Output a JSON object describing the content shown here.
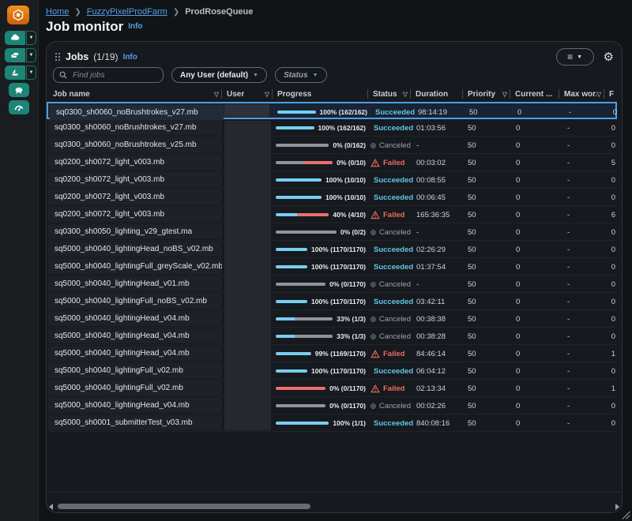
{
  "colors": {
    "accent_blue": "#539fe5",
    "cyan": "#74cff2",
    "red": "#eb6f6f",
    "gray": "#8d96a0",
    "succeeded_text": "#5fc8e8",
    "failed_text": "#ec6d62",
    "canceled_text": "#98a3ad",
    "sidebar_teal": "#1b8577",
    "logo_orange": "#ec7211"
  },
  "breadcrumb": {
    "items": [
      {
        "label": "Home",
        "link": true
      },
      {
        "label": "FuzzyPixelProdFarm",
        "link": true
      },
      {
        "label": "ProdRoseQueue",
        "link": false
      }
    ]
  },
  "page": {
    "title": "Job monitor",
    "info": "Info"
  },
  "sidebar": {
    "items": [
      {
        "icon": "farm-icon",
        "split": true
      },
      {
        "icon": "fleet-icon",
        "split": true
      },
      {
        "icon": "queue-icon",
        "split": true
      },
      {
        "icon": "budget-icon",
        "split": false
      },
      {
        "icon": "usage-icon",
        "split": false
      }
    ]
  },
  "panel": {
    "title": "Jobs",
    "count": "(1/19)",
    "info": "Info"
  },
  "toolbar": {
    "search_placeholder": "Find jobs",
    "user_filter": "Any User (default)",
    "status_filter": "Status"
  },
  "table": {
    "columns": [
      {
        "label": "Job name",
        "filter": true
      },
      {
        "label": "User",
        "filter": true
      },
      {
        "label": "Progress",
        "filter": false
      },
      {
        "label": "Status",
        "filter": true
      },
      {
        "label": "Duration",
        "filter": false
      },
      {
        "label": "Priority",
        "filter": true
      },
      {
        "label": "Current ...",
        "filter": false
      },
      {
        "label": "Max wor...",
        "filter": true
      },
      {
        "label": "F",
        "filter": false
      }
    ],
    "rows": [
      {
        "name": "sq0300_sh0060_noBrushtrokes_v27.mb",
        "progress": "100% (162/162)",
        "bar": [
          [
            "cyan",
            100
          ]
        ],
        "status": "Succeeded",
        "duration": "98:14:19",
        "priority": "50",
        "current": "0",
        "max_workers": "-",
        "failed": "0",
        "selected": true
      },
      {
        "name": "sq0300_sh0060_noBrushtrokes_v27.mb",
        "progress": "100% (162/162)",
        "bar": [
          [
            "cyan",
            100
          ]
        ],
        "status": "Succeeded",
        "duration": "01:03:56",
        "priority": "50",
        "current": "0",
        "max_workers": "-",
        "failed": "0",
        "selected": false
      },
      {
        "name": "sq0300_sh0060_noBrushtrokes_v25.mb",
        "progress": "0% (0/162)",
        "bar": [
          [
            "gray",
            100
          ]
        ],
        "status": "Canceled",
        "duration": "-",
        "priority": "50",
        "current": "0",
        "max_workers": "-",
        "failed": "0",
        "selected": false
      },
      {
        "name": "sq0200_sh0072_light_v003.mb",
        "progress": "0% (0/10)",
        "bar": [
          [
            "gray",
            50
          ],
          [
            "red",
            50
          ]
        ],
        "status": "Failed",
        "duration": "00:03:02",
        "priority": "50",
        "current": "0",
        "max_workers": "-",
        "failed": "5",
        "selected": false
      },
      {
        "name": "sq0200_sh0072_light_v003.mb",
        "progress": "100% (10/10)",
        "bar": [
          [
            "cyan",
            100
          ]
        ],
        "status": "Succeeded",
        "duration": "00:08:55",
        "priority": "50",
        "current": "0",
        "max_workers": "-",
        "failed": "0",
        "selected": false
      },
      {
        "name": "sq0200_sh0072_light_v003.mb",
        "progress": "100% (10/10)",
        "bar": [
          [
            "cyan",
            100
          ]
        ],
        "status": "Succeeded",
        "duration": "00:06:45",
        "priority": "50",
        "current": "0",
        "max_workers": "-",
        "failed": "0",
        "selected": false
      },
      {
        "name": "sq0200_sh0072_light_v003.mb",
        "progress": "40% (4/10)",
        "bar": [
          [
            "cyan",
            40
          ],
          [
            "red",
            60
          ]
        ],
        "status": "Failed",
        "duration": "165:36:35",
        "priority": "50",
        "current": "0",
        "max_workers": "-",
        "failed": "6",
        "selected": false
      },
      {
        "name": "sq0300_sh0050_lighting_v29_gtest.ma",
        "progress": "0% (0/2)",
        "bar": [
          [
            "gray",
            100
          ]
        ],
        "status": "Canceled",
        "duration": "-",
        "priority": "50",
        "current": "0",
        "max_workers": "-",
        "failed": "0",
        "selected": false
      },
      {
        "name": "sq5000_sh0040_lightingHead_noBS_v02.mb",
        "progress": "100% (1170/1170)",
        "bar": [
          [
            "cyan",
            100
          ]
        ],
        "status": "Succeeded",
        "duration": "02:26:29",
        "priority": "50",
        "current": "0",
        "max_workers": "-",
        "failed": "0",
        "selected": false
      },
      {
        "name": "sq5000_sh0040_lightingFull_greyScale_v02.mb",
        "progress": "100% (1170/1170)",
        "bar": [
          [
            "cyan",
            100
          ]
        ],
        "status": "Succeeded",
        "duration": "01:37:54",
        "priority": "50",
        "current": "0",
        "max_workers": "-",
        "failed": "0",
        "selected": false
      },
      {
        "name": "sq5000_sh0040_lightingHead_v01.mb",
        "progress": "0% (0/1170)",
        "bar": [
          [
            "gray",
            100
          ]
        ],
        "status": "Canceled",
        "duration": "-",
        "priority": "50",
        "current": "0",
        "max_workers": "-",
        "failed": "0",
        "selected": false
      },
      {
        "name": "sq5000_sh0040_lightingFull_noBS_v02.mb",
        "progress": "100% (1170/1170)",
        "bar": [
          [
            "cyan",
            100
          ]
        ],
        "status": "Succeeded",
        "duration": "03:42:11",
        "priority": "50",
        "current": "0",
        "max_workers": "-",
        "failed": "0",
        "selected": false
      },
      {
        "name": "sq5000_sh0040_lightingHead_v04.mb",
        "progress": "33% (1/3)",
        "bar": [
          [
            "cyan",
            33
          ],
          [
            "gray",
            67
          ]
        ],
        "status": "Canceled",
        "duration": "00:38:38",
        "priority": "50",
        "current": "0",
        "max_workers": "-",
        "failed": "0",
        "selected": false
      },
      {
        "name": "sq5000_sh0040_lightingHead_v04.mb",
        "progress": "33% (1/3)",
        "bar": [
          [
            "cyan",
            33
          ],
          [
            "gray",
            67
          ]
        ],
        "status": "Canceled",
        "duration": "00:38:28",
        "priority": "50",
        "current": "0",
        "max_workers": "-",
        "failed": "0",
        "selected": false
      },
      {
        "name": "sq5000_sh0040_lightingHead_v04.mb",
        "progress": "99% (1169/1170)",
        "bar": [
          [
            "cyan",
            99
          ],
          [
            "red",
            1
          ]
        ],
        "status": "Failed",
        "duration": "84:46:14",
        "priority": "50",
        "current": "0",
        "max_workers": "-",
        "failed": "1",
        "selected": false
      },
      {
        "name": "sq5000_sh0040_lightingFull_v02.mb",
        "progress": "100% (1170/1170)",
        "bar": [
          [
            "cyan",
            100
          ]
        ],
        "status": "Succeeded",
        "duration": "06:04:12",
        "priority": "50",
        "current": "0",
        "max_workers": "-",
        "failed": "0",
        "selected": false
      },
      {
        "name": "sq5000_sh0040_lightingFull_v02.mb",
        "progress": "0% (0/1170)",
        "bar": [
          [
            "red",
            100
          ]
        ],
        "status": "Failed",
        "duration": "02:13:34",
        "priority": "50",
        "current": "0",
        "max_workers": "-",
        "failed": "1",
        "selected": false
      },
      {
        "name": "sq5000_sh0040_lightingHead_v04.mb",
        "progress": "0% (0/1170)",
        "bar": [
          [
            "gray",
            100
          ]
        ],
        "status": "Canceled",
        "duration": "00:02:26",
        "priority": "50",
        "current": "0",
        "max_workers": "-",
        "failed": "0",
        "selected": false
      },
      {
        "name": "sq5000_sh0001_submitterTest_v03.mb",
        "progress": "100% (1/1)",
        "bar": [
          [
            "cyan",
            100
          ]
        ],
        "status": "Succeeded",
        "duration": "840:08:16",
        "priority": "50",
        "current": "0",
        "max_workers": "-",
        "failed": "0",
        "selected": false
      }
    ]
  }
}
